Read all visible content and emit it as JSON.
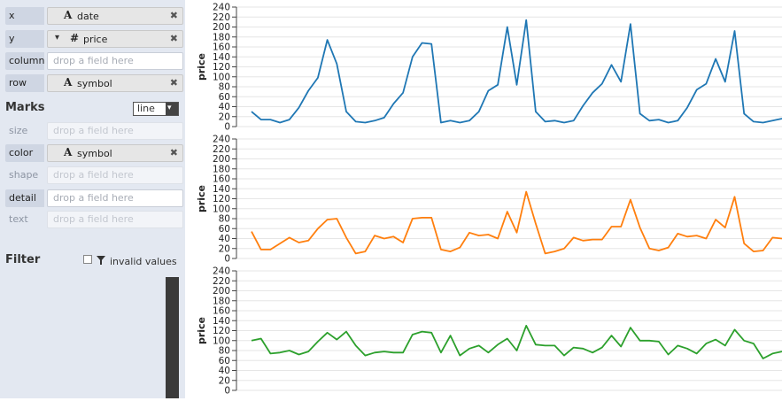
{
  "shelves": {
    "x": {
      "label": "x",
      "type_icon": "A",
      "field": "date",
      "remove": "✖"
    },
    "y": {
      "label": "y",
      "caret": "▾",
      "type_icon": "#",
      "field": "price",
      "remove": "✖"
    },
    "column": {
      "label": "column",
      "placeholder": "drop a field here"
    },
    "row": {
      "label": "row",
      "type_icon": "A",
      "field": "symbol",
      "remove": "✖"
    }
  },
  "marks": {
    "title": "Marks",
    "mark_type": "line",
    "arrow": "▾",
    "size": {
      "label": "size",
      "placeholder": "drop a field here"
    },
    "color": {
      "label": "color",
      "type_icon": "A",
      "field": "symbol",
      "remove": "✖"
    },
    "shape": {
      "label": "shape",
      "placeholder": "drop a field here"
    },
    "detail": {
      "label": "detail",
      "placeholder": "drop a field here"
    },
    "text": {
      "label": "text",
      "placeholder": "drop a field here"
    }
  },
  "filter": {
    "title": "Filter",
    "invalid_label": "invalid values"
  },
  "chart_data": {
    "type": "line",
    "ylabel": "price",
    "ylim": [
      0,
      240
    ],
    "yticks": [
      0,
      20,
      40,
      60,
      80,
      100,
      120,
      140,
      160,
      180,
      200,
      220,
      240
    ],
    "grid": true,
    "series": [
      {
        "color": "#1f77b4",
        "values": [
          30,
          14,
          14,
          8,
          14,
          38,
          72,
          98,
          174,
          126,
          30,
          10,
          8,
          12,
          18,
          46,
          68,
          140,
          168,
          166,
          8,
          12,
          8,
          12,
          30,
          72,
          84,
          200,
          84,
          214,
          30,
          10,
          12,
          8,
          12,
          42,
          68,
          86,
          124,
          90,
          206,
          26,
          12,
          14,
          8,
          12,
          38,
          74,
          86,
          136,
          90,
          192,
          26,
          10,
          8,
          12,
          16
        ]
      },
      {
        "color": "#ff7f0e",
        "values": [
          54,
          18,
          18,
          30,
          42,
          32,
          36,
          60,
          78,
          80,
          42,
          10,
          14,
          46,
          40,
          44,
          32,
          80,
          82,
          82,
          18,
          14,
          22,
          52,
          46,
          48,
          40,
          94,
          52,
          134,
          70,
          10,
          14,
          20,
          42,
          36,
          38,
          38,
          64,
          64,
          118,
          62,
          20,
          16,
          22,
          50,
          44,
          46,
          40,
          78,
          62,
          124,
          30,
          14,
          16,
          42,
          40
        ]
      },
      {
        "color": "#2ca02c",
        "values": [
          100,
          104,
          74,
          76,
          80,
          72,
          78,
          98,
          116,
          102,
          118,
          90,
          70,
          76,
          78,
          76,
          76,
          112,
          118,
          116,
          76,
          110,
          70,
          84,
          90,
          76,
          92,
          104,
          80,
          130,
          92,
          90,
          90,
          70,
          86,
          84,
          76,
          86,
          110,
          88,
          126,
          100,
          100,
          98,
          72,
          90,
          84,
          74,
          94,
          102,
          90,
          122,
          100,
          94,
          64,
          74,
          78
        ]
      }
    ]
  }
}
